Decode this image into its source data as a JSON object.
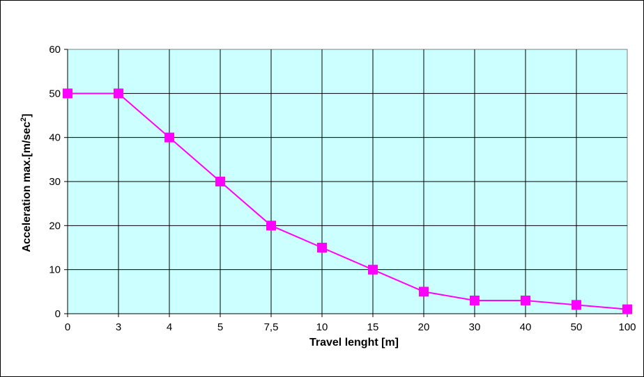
{
  "chart_data": {
    "type": "line",
    "xlabel": "Travel lenght [m]",
    "ylabel_main": "Acceleration max.[m/sec",
    "ylabel_sup": "2",
    "ylabel_close": "]",
    "categories": [
      "0",
      "3",
      "4",
      "5",
      "7,5",
      "10",
      "15",
      "20",
      "30",
      "40",
      "50",
      "100"
    ],
    "y_ticks": [
      "0",
      "10",
      "20",
      "30",
      "40",
      "50",
      "60"
    ],
    "ylim": [
      0,
      60
    ],
    "grid": true,
    "series": [
      {
        "values": [
          50,
          50,
          40,
          30,
          20,
          15,
          10,
          5,
          3,
          3,
          2,
          1
        ],
        "color": "#ff00ff",
        "marker": "square"
      }
    ],
    "plot_background": "#ccffff",
    "grid_color": "#000000"
  }
}
